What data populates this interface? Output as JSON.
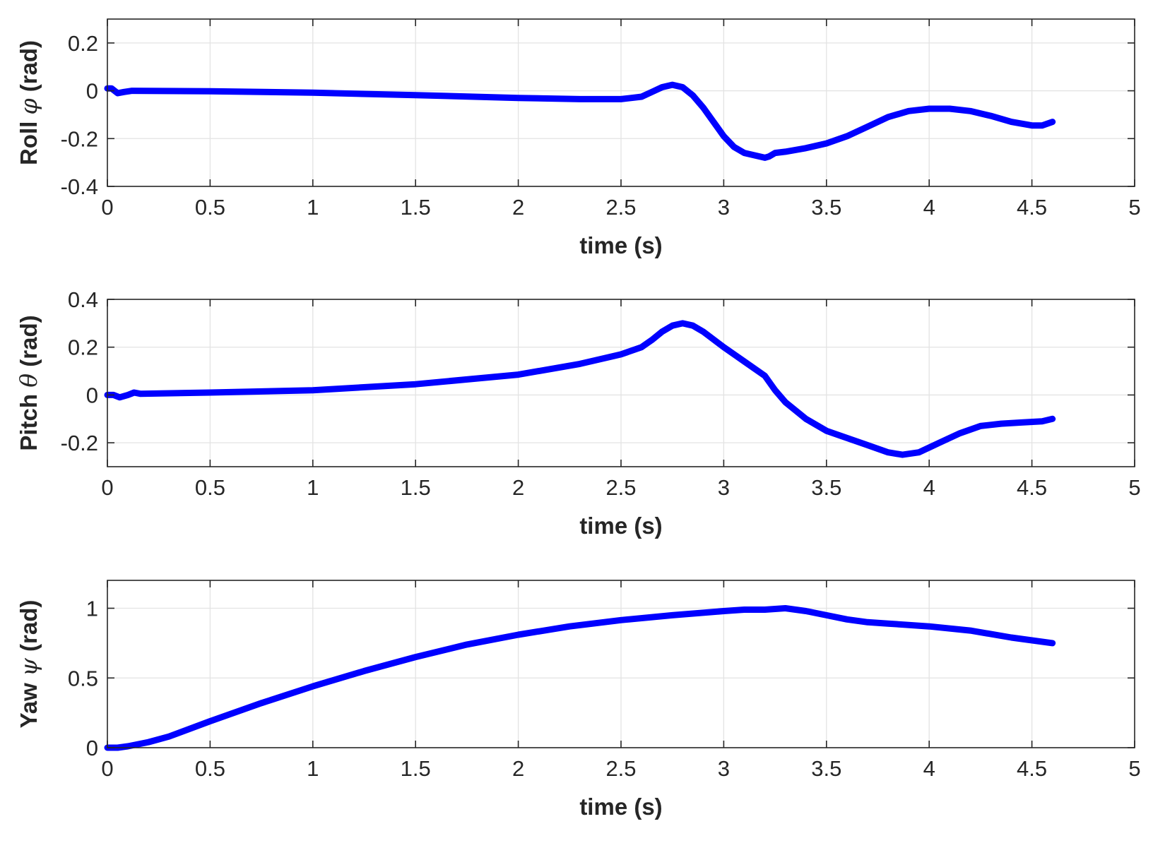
{
  "colors": {
    "series": "#0000ff",
    "axes": "#262626",
    "grid": "#e3e3e3",
    "background": "#ffffff"
  },
  "chart_data": [
    {
      "type": "line",
      "xlabel": "time (s)",
      "ylabel": {
        "prefix": "Roll ",
        "symbol": "φ",
        "suffix": " (rad)"
      },
      "xlim": [
        0,
        5
      ],
      "ylim": [
        -0.4,
        0.3
      ],
      "xticks": [
        0,
        0.5,
        1,
        1.5,
        2,
        2.5,
        3,
        3.5,
        4,
        4.5,
        5
      ],
      "xtick_labels": [
        "0",
        "0.5",
        "1",
        "1.5",
        "2",
        "2.5",
        "3",
        "3.5",
        "4",
        "4.5",
        "5"
      ],
      "yticks": [
        -0.4,
        -0.2,
        0,
        0.2
      ],
      "ytick_labels": [
        "-0.4",
        "-0.2",
        "0",
        "0.2"
      ],
      "grid": true,
      "series": [
        {
          "x": [
            0,
            0.02,
            0.05,
            0.08,
            0.12,
            0.5,
            1.0,
            1.5,
            2.0,
            2.3,
            2.5,
            2.6,
            2.65,
            2.7,
            2.75,
            2.8,
            2.85,
            2.9,
            2.95,
            3.0,
            3.05,
            3.1,
            3.15,
            3.2,
            3.22,
            3.25,
            3.3,
            3.4,
            3.5,
            3.6,
            3.7,
            3.8,
            3.9,
            4.0,
            4.1,
            4.2,
            4.3,
            4.4,
            4.5,
            4.55,
            4.6
          ],
          "y": [
            0.01,
            0.01,
            -0.01,
            -0.005,
            0.0,
            -0.002,
            -0.008,
            -0.018,
            -0.03,
            -0.035,
            -0.035,
            -0.025,
            -0.005,
            0.015,
            0.025,
            0.015,
            -0.02,
            -0.07,
            -0.13,
            -0.19,
            -0.235,
            -0.26,
            -0.27,
            -0.28,
            -0.275,
            -0.26,
            -0.255,
            -0.24,
            -0.22,
            -0.19,
            -0.15,
            -0.11,
            -0.085,
            -0.075,
            -0.075,
            -0.085,
            -0.105,
            -0.13,
            -0.145,
            -0.145,
            -0.13
          ]
        }
      ]
    },
    {
      "type": "line",
      "xlabel": "time (s)",
      "ylabel": {
        "prefix": "Pitch ",
        "symbol": "θ",
        "suffix": " (rad)"
      },
      "xlim": [
        0,
        5
      ],
      "ylim": [
        -0.3,
        0.4
      ],
      "xticks": [
        0,
        0.5,
        1,
        1.5,
        2,
        2.5,
        3,
        3.5,
        4,
        4.5,
        5
      ],
      "xtick_labels": [
        "0",
        "0.5",
        "1",
        "1.5",
        "2",
        "2.5",
        "3",
        "3.5",
        "4",
        "4.5",
        "5"
      ],
      "yticks": [
        -0.2,
        0,
        0.2,
        0.4
      ],
      "ytick_labels": [
        "-0.2",
        "0",
        "0.2",
        "0.4"
      ],
      "grid": true,
      "series": [
        {
          "x": [
            0,
            0.03,
            0.06,
            0.1,
            0.13,
            0.16,
            0.5,
            1.0,
            1.5,
            2.0,
            2.3,
            2.5,
            2.6,
            2.65,
            2.7,
            2.75,
            2.8,
            2.85,
            2.9,
            3.0,
            3.1,
            3.2,
            3.25,
            3.3,
            3.4,
            3.5,
            3.6,
            3.7,
            3.8,
            3.87,
            3.95,
            4.05,
            4.15,
            4.25,
            4.35,
            4.45,
            4.55,
            4.6
          ],
          "y": [
            0.0,
            0.0,
            -0.01,
            0.0,
            0.01,
            0.005,
            0.01,
            0.02,
            0.045,
            0.085,
            0.13,
            0.17,
            0.2,
            0.23,
            0.265,
            0.29,
            0.3,
            0.29,
            0.265,
            0.2,
            0.14,
            0.08,
            0.02,
            -0.03,
            -0.1,
            -0.15,
            -0.18,
            -0.21,
            -0.24,
            -0.25,
            -0.24,
            -0.2,
            -0.16,
            -0.13,
            -0.12,
            -0.115,
            -0.11,
            -0.1
          ]
        }
      ]
    },
    {
      "type": "line",
      "xlabel": "time (s)",
      "ylabel": {
        "prefix": "Yaw ",
        "symbol": "ψ",
        "suffix": " (rad)"
      },
      "xlim": [
        0,
        5
      ],
      "ylim": [
        0,
        1.2
      ],
      "xticks": [
        0,
        0.5,
        1,
        1.5,
        2,
        2.5,
        3,
        3.5,
        4,
        4.5,
        5
      ],
      "xtick_labels": [
        "0",
        "0.5",
        "1",
        "1.5",
        "2",
        "2.5",
        "3",
        "3.5",
        "4",
        "4.5",
        "5"
      ],
      "yticks": [
        0,
        0.5,
        1
      ],
      "ytick_labels": [
        "0",
        "0.5",
        "1"
      ],
      "grid": true,
      "series": [
        {
          "x": [
            0,
            0.05,
            0.1,
            0.2,
            0.3,
            0.5,
            0.75,
            1.0,
            1.25,
            1.5,
            1.75,
            2.0,
            2.25,
            2.5,
            2.75,
            3.0,
            3.1,
            3.2,
            3.3,
            3.4,
            3.5,
            3.6,
            3.7,
            3.8,
            4.0,
            4.2,
            4.4,
            4.6
          ],
          "y": [
            0.0,
            0.0,
            0.01,
            0.04,
            0.08,
            0.19,
            0.32,
            0.44,
            0.55,
            0.65,
            0.74,
            0.81,
            0.87,
            0.915,
            0.95,
            0.98,
            0.99,
            0.99,
            1.0,
            0.98,
            0.95,
            0.92,
            0.9,
            0.89,
            0.87,
            0.84,
            0.79,
            0.75
          ]
        }
      ]
    }
  ]
}
